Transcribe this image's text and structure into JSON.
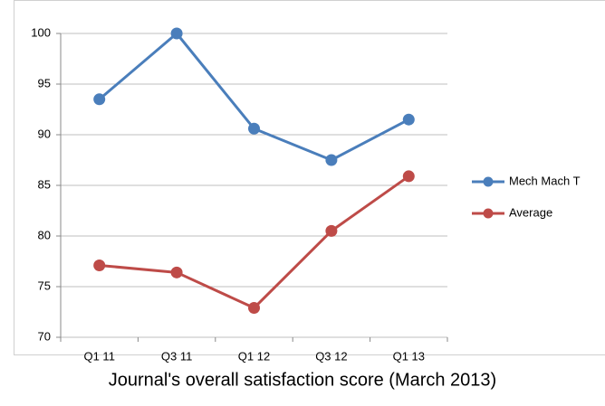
{
  "chart_data": {
    "type": "line",
    "title": "Journal's overall satisfaction score (March 2013)",
    "categories": [
      "Q1 11",
      "Q3 11",
      "Q1 12",
      "Q3 12",
      "Q1 13"
    ],
    "series": [
      {
        "name": "Mech Mach T",
        "color": "#4a7ebb",
        "values": [
          93.5,
          100,
          90.6,
          87.5,
          91.5
        ]
      },
      {
        "name": "Average",
        "color": "#be4b48",
        "values": [
          77.1,
          76.4,
          72.9,
          80.5,
          85.9
        ]
      }
    ],
    "ylim": [
      70,
      100
    ],
    "yticks": [
      70,
      75,
      80,
      85,
      90,
      95,
      100
    ],
    "grid": true,
    "legend": "right"
  }
}
